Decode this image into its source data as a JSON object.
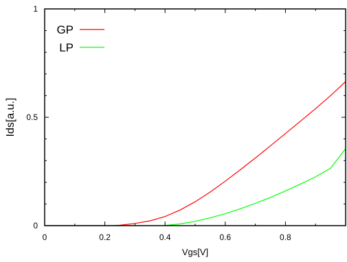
{
  "chart_data": {
    "type": "line",
    "title": "",
    "xlabel": "Vgs[V]",
    "ylabel": "Ids[a.u.]",
    "xlim": [
      0,
      1.0
    ],
    "ylim": [
      0,
      1
    ],
    "xticks": [
      {
        "value": 0,
        "label": "0"
      },
      {
        "value": 0.2,
        "label": "0.2"
      },
      {
        "value": 0.4,
        "label": "0.4"
      },
      {
        "value": 0.6,
        "label": "0.6"
      },
      {
        "value": 0.8,
        "label": "0.8"
      }
    ],
    "yticks": [
      {
        "value": 0,
        "label": "0"
      },
      {
        "value": 0.5,
        "label": "0.5"
      },
      {
        "value": 1,
        "label": "1"
      }
    ],
    "legend_position": "top-left",
    "grid": false,
    "series": [
      {
        "name": "GP",
        "color": "#ff0000",
        "x": [
          0,
          0.05,
          0.1,
          0.15,
          0.2,
          0.22,
          0.25,
          0.3,
          0.35,
          0.4,
          0.45,
          0.5,
          0.55,
          0.6,
          0.65,
          0.7,
          0.75,
          0.8,
          0.85,
          0.9,
          0.95,
          1.0
        ],
        "y": [
          0,
          0,
          0,
          0,
          0,
          0,
          0.002,
          0.01,
          0.022,
          0.042,
          0.072,
          0.11,
          0.155,
          0.205,
          0.258,
          0.312,
          0.368,
          0.425,
          0.482,
          0.54,
          0.6,
          0.665
        ]
      },
      {
        "name": "LP",
        "color": "#00ff00",
        "x": [
          0,
          0.1,
          0.2,
          0.3,
          0.38,
          0.4,
          0.45,
          0.5,
          0.55,
          0.6,
          0.65,
          0.7,
          0.75,
          0.8,
          0.85,
          0.9,
          0.95,
          1.0
        ],
        "y": [
          0,
          0,
          0,
          0,
          0,
          0.001,
          0.008,
          0.02,
          0.036,
          0.055,
          0.078,
          0.103,
          0.13,
          0.16,
          0.192,
          0.225,
          0.265,
          0.355
        ]
      }
    ]
  }
}
